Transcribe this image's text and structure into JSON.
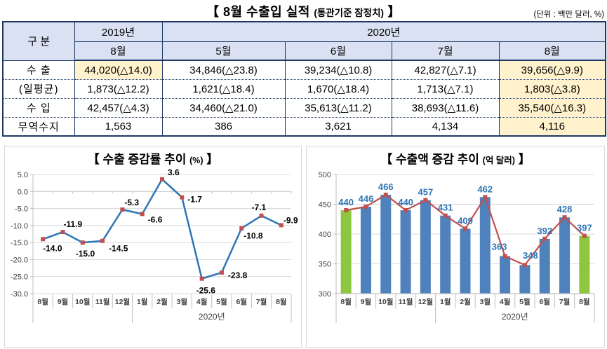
{
  "header": {
    "title_main": "【 8월 수출입 실적 ",
    "title_sub": "(통관기준 잠정치)",
    "title_close": " 】",
    "unit_note": "(단위 : 백만 달러, %)"
  },
  "table": {
    "col_group_label": "구  분",
    "year_2019": "2019년",
    "year_2020": "2020년",
    "month_2019": "8월",
    "months_2020": [
      "5월",
      "6월",
      "7월",
      "8월"
    ],
    "rows": [
      {
        "label": "수 출",
        "cells": [
          "44,020(△14.0)",
          "34,846(△23.8)",
          "39,234(△10.8)",
          "42,827(△7.1)",
          "39,656(△9.9)"
        ]
      },
      {
        "label": "(일평균)",
        "cells": [
          "1,873(△12.2)",
          "1,621(△18.4)",
          "1,670(△18.4)",
          "1,713(△7.1)",
          "1,803(△3.8)"
        ]
      },
      {
        "label": "수 입",
        "cells": [
          "42,457(△4.3)",
          "34,460(△21.0)",
          "35,613(△11.2)",
          "38,693(△11.6)",
          "35,540(△16.3)"
        ]
      },
      {
        "label": "무역수지",
        "cells": [
          "1,563",
          "386",
          "3,621",
          "4,134",
          "4,116"
        ]
      }
    ],
    "header_bg": "#D9E1F2",
    "highlight_bg": "#FFF2CC",
    "border_color": "#1F3864"
  },
  "chart_data": [
    {
      "type": "line",
      "title": "【 수출 증감률 추이 ",
      "title_unit": "(%)",
      "title_close": " 】",
      "categories": [
        "8월",
        "9월",
        "10월",
        "11월",
        "12월",
        "1월",
        "2월",
        "3월",
        "4월",
        "5월",
        "6월",
        "7월",
        "8월"
      ],
      "values": [
        -14.0,
        -11.9,
        -15.0,
        -14.5,
        -5.3,
        -6.6,
        3.6,
        -1.7,
        -25.6,
        -23.8,
        -10.8,
        -7.1,
        -9.9
      ],
      "labels": [
        "-14.0",
        "-11.9",
        "-15.0",
        "-14.5",
        "-5.3",
        "-6.6",
        "3.6",
        "-1.7",
        "-25.6",
        "-23.8",
        "-10.8",
        "-7.1",
        "-9.9"
      ],
      "ylim": [
        -30,
        5
      ],
      "yticks": [
        "5.0",
        "0.0",
        "-5.0",
        "-10.0",
        "-15.0",
        "-20.0",
        "-25.0",
        "-30.0"
      ],
      "x_group_label": "2020년",
      "x_group_span": [
        5,
        12
      ],
      "grid": true,
      "line_color": "#2E75B6",
      "marker_color": "#C0504D",
      "label_color": "#000000",
      "axis_color": "#BFBFBF",
      "grid_color": "#D9D9D9",
      "tick_text_color": "#404040"
    },
    {
      "type": "bar",
      "title": "【 수출액 증감 추이 ",
      "title_unit": "(억 달러)",
      "title_close": " 】",
      "categories": [
        "8월",
        "9월",
        "10월",
        "11월",
        "12월",
        "1월",
        "2월",
        "3월",
        "4월",
        "5월",
        "6월",
        "7월",
        "8월"
      ],
      "values": [
        440,
        446,
        466,
        440,
        457,
        431,
        409,
        462,
        363,
        348,
        392,
        428,
        397
      ],
      "ylim": [
        300,
        500
      ],
      "yticks": [
        "500",
        "450",
        "400",
        "350",
        "300"
      ],
      "x_group_label": "2020년",
      "x_group_span": [
        5,
        12
      ],
      "grid": true,
      "bar_color": "#4F81BD",
      "highlight_bar_color": "#8DC63F",
      "highlight_indexes": [
        0,
        12
      ],
      "line_color": "#C0504D",
      "label_color": "#2E75B6",
      "axis_color": "#BFBFBF",
      "grid_color": "#D9D9D9",
      "tick_text_color": "#404040"
    }
  ]
}
